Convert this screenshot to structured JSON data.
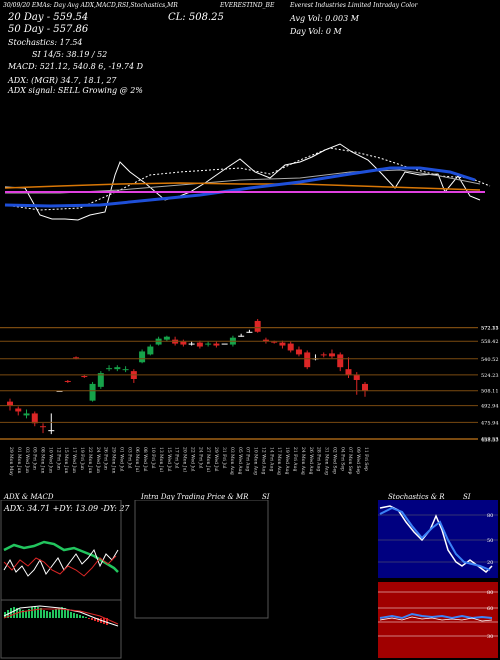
{
  "header": {
    "line1_left": "30/09/20 EMAs: Day Avg ADX,MACD,R",
    "line1_mid": "SI,Stochastics,MR",
    "line1_mid2": "MR",
    "line1_sym": "EVERESTIND_BE",
    "line1_right": "Everest Industries Limited Intraday Color",
    "close_label": "CL: 508.25",
    "avg_vol": "Avg Vol: 0.003  M",
    "day_vol": "Day Vol: 0  M",
    "ema20": "20  Day - 559.54",
    "ema50": "50  Day - 557.86",
    "stoch": "Stochastics: 17.54",
    "rsi": "SI 14/5: 38.19 / 52",
    "macd": "MACD: 521.12, 540.8        6, -19.74  D",
    "adx": "ADX:                (MGR) 34.7, 18.1, 27",
    "adx_signal": "ADX  signal: SELL Growing @ 2%"
  },
  "panels": {
    "adx_title": "ADX  & MACD",
    "adx_values": "ADX: 34.71 +DY: 13.09 -DY: 27",
    "intraday_title": "Intra  Day Trading Price  & MR",
    "intraday_si": "SI",
    "stoch_title": "Stochastics & R",
    "stoch_si": "SI"
  },
  "colors": {
    "bg": "#000000",
    "up": "#16a34a",
    "down": "#dc2626",
    "ema_blue": "#1e4fd8",
    "ema_orange": "#d97706",
    "bb_magenta": "#e040e0",
    "grid_orange": "#7a4a10",
    "rsi_bg": "#a00000",
    "stoch_bg": "#000080"
  },
  "chart_data": {
    "type": "candlestick",
    "price_axis_labels": [
      "572.33",
      "572.11",
      "558.42",
      "540.52",
      "524.23",
      "508.11",
      "492.94",
      "475.94",
      "459.53",
      "458.53"
    ],
    "x_labels": [
      "29 Mon May",
      "01 Mon Jun",
      "03 Wed Jun",
      "05 Fri Jun",
      "08 Mon Jun",
      "10 Wed Jun",
      "12 Fri Jun",
      "15 Mon Jun",
      "17 Wed Jun",
      "19 Fri Jun",
      "22 Mon Jun",
      "24 Wed Jun",
      "26 Fri Jun",
      "29 Mon Jun",
      "01 Wed Jul",
      "03 Fri Jul",
      "06 Mon Jul",
      "08 Wed Jul",
      "10 Fri Jul",
      "13 Mon Jul",
      "15 Wed Jul",
      "17 Fri Jul",
      "20 Mon Jul",
      "22 Wed Jul",
      "24 Fri Jul",
      "27 Mon Jul",
      "29 Wed Jul",
      "31 Fri Jul",
      "03 Mon Aug",
      "05 Wed Aug",
      "07 Fri Aug",
      "10 Mon Aug",
      "12 Wed Aug",
      "14 Fri Aug",
      "17 Mon Aug",
      "19 Wed Aug",
      "21 Fri Aug",
      "24 Mon Aug",
      "26 Wed Aug",
      "28 Fri Aug",
      "31 Mon Aug",
      "02 Wed Sep",
      "04 Fri Sep",
      "07 Mon Sep",
      "09 Wed Sep",
      "11 Fri Sep"
    ],
    "candles": [
      {
        "o": 497,
        "c": 493,
        "h": 500,
        "l": 488
      },
      {
        "o": 490,
        "c": 487,
        "h": 492,
        "l": 483
      },
      {
        "o": 483,
        "c": 485,
        "h": 489,
        "l": 480
      },
      {
        "o": 485,
        "c": 475,
        "h": 487,
        "l": 472
      },
      {
        "o": 472,
        "c": 471,
        "h": 475,
        "l": 465
      },
      {
        "o": 468,
        "c": 468,
        "h": 485,
        "l": 464
      },
      {
        "o": 508,
        "c": 508,
        "h": 508,
        "l": 508
      },
      {
        "o": 518,
        "c": 517,
        "h": 519,
        "l": 516
      },
      {
        "o": 542,
        "c": 541,
        "h": 543,
        "l": 540
      },
      {
        "o": 523,
        "c": 522,
        "h": 524,
        "l": 521
      },
      {
        "o": 498,
        "c": 515,
        "h": 517,
        "l": 497
      },
      {
        "o": 512,
        "c": 526,
        "h": 528,
        "l": 510
      },
      {
        "o": 530,
        "c": 531,
        "h": 534,
        "l": 528
      },
      {
        "o": 530,
        "c": 532,
        "h": 534,
        "l": 528
      },
      {
        "o": 529,
        "c": 530,
        "h": 533,
        "l": 527
      },
      {
        "o": 528,
        "c": 520,
        "h": 530,
        "l": 516
      },
      {
        "o": 537,
        "c": 548,
        "h": 550,
        "l": 536
      },
      {
        "o": 545,
        "c": 553,
        "h": 555,
        "l": 544
      },
      {
        "o": 555,
        "c": 561,
        "h": 563,
        "l": 554
      },
      {
        "o": 560,
        "c": 563,
        "h": 564,
        "l": 558
      },
      {
        "o": 560,
        "c": 556,
        "h": 563,
        "l": 554
      },
      {
        "o": 558,
        "c": 555,
        "h": 560,
        "l": 553
      },
      {
        "o": 556,
        "c": 556,
        "h": 558,
        "l": 554
      },
      {
        "o": 557,
        "c": 553,
        "h": 559,
        "l": 551
      },
      {
        "o": 555,
        "c": 556,
        "h": 558,
        "l": 553
      },
      {
        "o": 556,
        "c": 554,
        "h": 558,
        "l": 552
      },
      {
        "o": 556,
        "c": 556,
        "h": 556,
        "l": 556
      },
      {
        "o": 555,
        "c": 562,
        "h": 564,
        "l": 553
      },
      {
        "o": 564,
        "c": 564,
        "h": 566,
        "l": 563
      },
      {
        "o": 568,
        "c": 568,
        "h": 570,
        "l": 567
      },
      {
        "o": 579,
        "c": 568,
        "h": 581,
        "l": 567
      },
      {
        "o": 560,
        "c": 558,
        "h": 562,
        "l": 556
      },
      {
        "o": 558,
        "c": 557,
        "h": 559,
        "l": 556
      },
      {
        "o": 557,
        "c": 554,
        "h": 559,
        "l": 551
      },
      {
        "o": 556,
        "c": 549,
        "h": 558,
        "l": 547
      },
      {
        "o": 550,
        "c": 545,
        "h": 553,
        "l": 543
      },
      {
        "o": 547,
        "c": 532,
        "h": 549,
        "l": 530
      },
      {
        "o": 541,
        "c": 541,
        "h": 545,
        "l": 539
      },
      {
        "o": 545,
        "c": 544,
        "h": 547,
        "l": 542
      },
      {
        "o": 546,
        "c": 543,
        "h": 550,
        "l": 541
      },
      {
        "o": 545,
        "c": 532,
        "h": 547,
        "l": 528
      },
      {
        "o": 530,
        "c": 524,
        "h": 542,
        "l": 521
      },
      {
        "o": 524,
        "c": 519,
        "h": 527,
        "l": 504
      },
      {
        "o": 515,
        "c": 508,
        "h": 517,
        "l": 502
      }
    ]
  }
}
